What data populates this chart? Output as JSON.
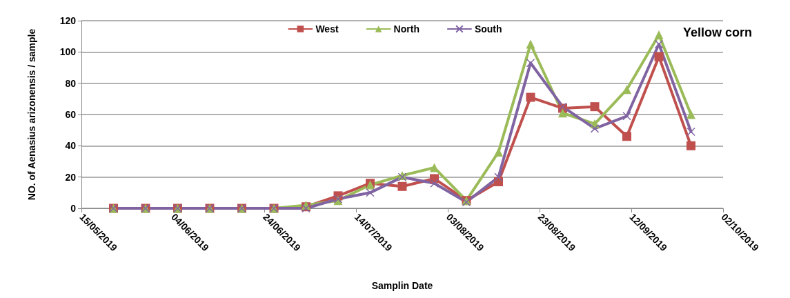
{
  "chart_data": {
    "type": "line",
    "xlabel": "Samplin Date",
    "ylabel": "NO. of Aenasius arizonensis / sample",
    "x": [
      "2019-05-22",
      "2019-05-29",
      "2019-06-05",
      "2019-06-12",
      "2019-06-19",
      "2019-06-26",
      "2019-07-03",
      "2019-07-10",
      "2019-07-17",
      "2019-07-24",
      "2019-07-31",
      "2019-08-07",
      "2019-08-14",
      "2019-08-21",
      "2019-08-28",
      "2019-09-04",
      "2019-09-11",
      "2019-09-18",
      "2019-09-25"
    ],
    "series": [
      {
        "name": "West",
        "color": "#c0504d",
        "marker": "square",
        "values": [
          0,
          0,
          0,
          0,
          0,
          0,
          1,
          8,
          16,
          14,
          19,
          5,
          17,
          71,
          64,
          65,
          46,
          97,
          40
        ]
      },
      {
        "name": "North",
        "color": "#9bbb59",
        "marker": "triangle",
        "values": [
          0,
          0,
          0,
          0,
          0,
          0,
          2,
          5,
          15,
          21,
          26,
          5,
          36,
          105,
          61,
          54,
          76,
          111,
          60
        ]
      },
      {
        "name": "South",
        "color": "#8064a2",
        "marker": "cross",
        "values": [
          0,
          0,
          0,
          0,
          0,
          0,
          0,
          6,
          10,
          20,
          16,
          4,
          20,
          93,
          65,
          51,
          59,
          105,
          49
        ]
      }
    ],
    "xlim": [
      "2019-05-15",
      "2019-10-02"
    ],
    "xticks": [
      {
        "value": "2019-05-15",
        "label": "15/05/2019"
      },
      {
        "value": "2019-06-04",
        "label": "04/06/2019"
      },
      {
        "value": "2019-06-24",
        "label": "24/06/2019"
      },
      {
        "value": "2019-07-14",
        "label": "14/07/2019"
      },
      {
        "value": "2019-08-03",
        "label": "03/08/2019"
      },
      {
        "value": "2019-08-23",
        "label": "23/08/2019"
      },
      {
        "value": "2019-09-12",
        "label": "12/09/2019"
      },
      {
        "value": "2019-10-02",
        "label": "02/10/2019"
      }
    ],
    "ylim": [
      0,
      120
    ],
    "yticks": [
      0,
      20,
      40,
      60,
      80,
      100,
      120
    ],
    "grid": "y",
    "legend": "top",
    "line_style": "solid",
    "annotations": [
      "Yellow corn"
    ]
  }
}
